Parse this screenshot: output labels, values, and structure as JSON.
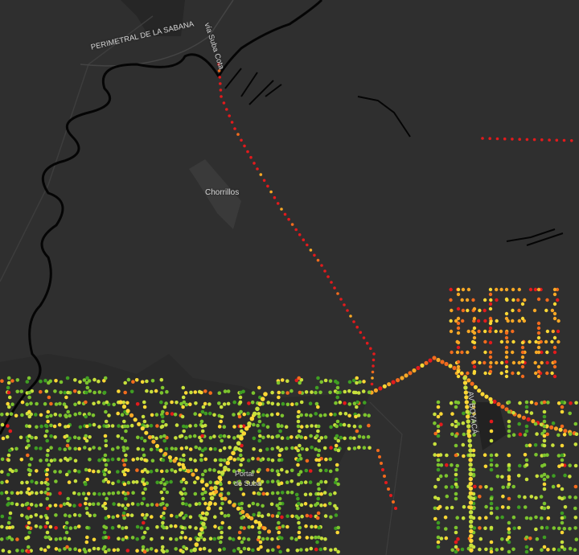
{
  "labels": {
    "perimetral": "PERIMETRAL DE LA SABANA",
    "via_suba_cota": "vía Suba Cota",
    "chorrillos": "Chorrillos",
    "portal_line1": "Portal",
    "portal_line2": "de Suba",
    "boyaca": "AV BOYACÁ"
  },
  "colors": {
    "background": "#2f2f2f",
    "river": "#050505",
    "roads": "#3c3c3c",
    "built_area": "#262626",
    "dot_scale": [
      "#e31a1c",
      "#f26b1d",
      "#f9a825",
      "#fdd835",
      "#c8e03c",
      "#7cc42e",
      "#3f9e22"
    ]
  }
}
